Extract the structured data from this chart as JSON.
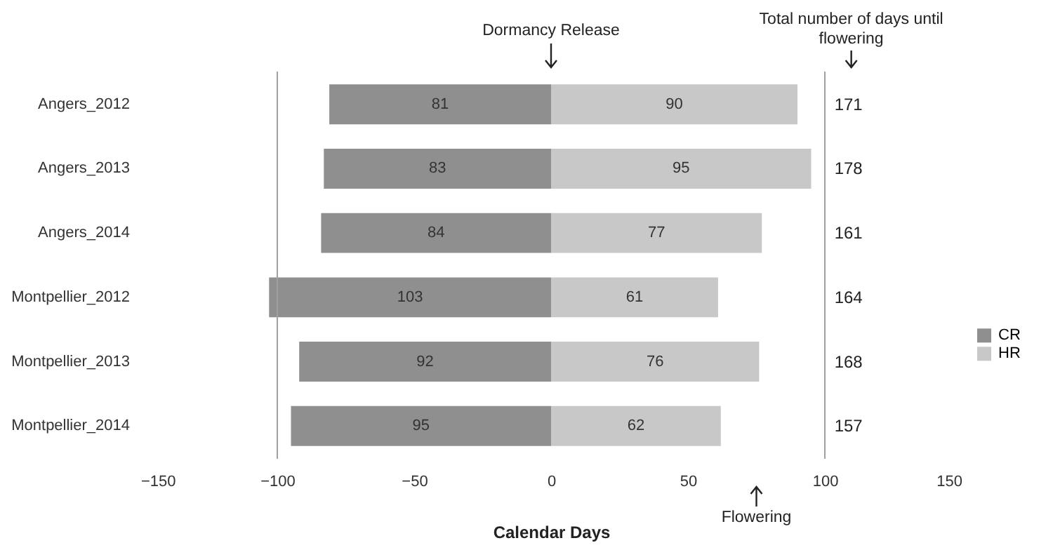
{
  "chart_data": {
    "type": "bar",
    "orientation": "horizontal",
    "xlabel": "Calendar Days",
    "categories": [
      "Angers_2012",
      "Angers_2013",
      "Angers_2014",
      "Montpellier_2012",
      "Montpellier_2013",
      "Montpellier_2014"
    ],
    "series": [
      {
        "name": "CR",
        "color": "#8f8f8f",
        "base": [
          -81,
          -83,
          -84,
          -103,
          -92,
          -95
        ],
        "values": [
          81,
          83,
          84,
          103,
          92,
          95
        ]
      },
      {
        "name": "HR",
        "color": "#c8c8c8",
        "values": [
          90,
          95,
          77,
          61,
          76,
          62
        ]
      }
    ],
    "data_labels": true,
    "xlim": [
      -150,
      150
    ],
    "xticks": [
      -150,
      -100,
      -50,
      0,
      50,
      100,
      150
    ],
    "ref_lines": [
      {
        "axis": "x",
        "value": -100,
        "color": "#a0a0a0"
      },
      {
        "axis": "x",
        "value": 100,
        "color": "#a0a0a0"
      }
    ],
    "annotations": [
      "Dormancy Release",
      "Total number of days until flowering",
      "Flowering",
      "171",
      "178",
      "161",
      "164",
      "168",
      "157"
    ],
    "legend": "right"
  }
}
